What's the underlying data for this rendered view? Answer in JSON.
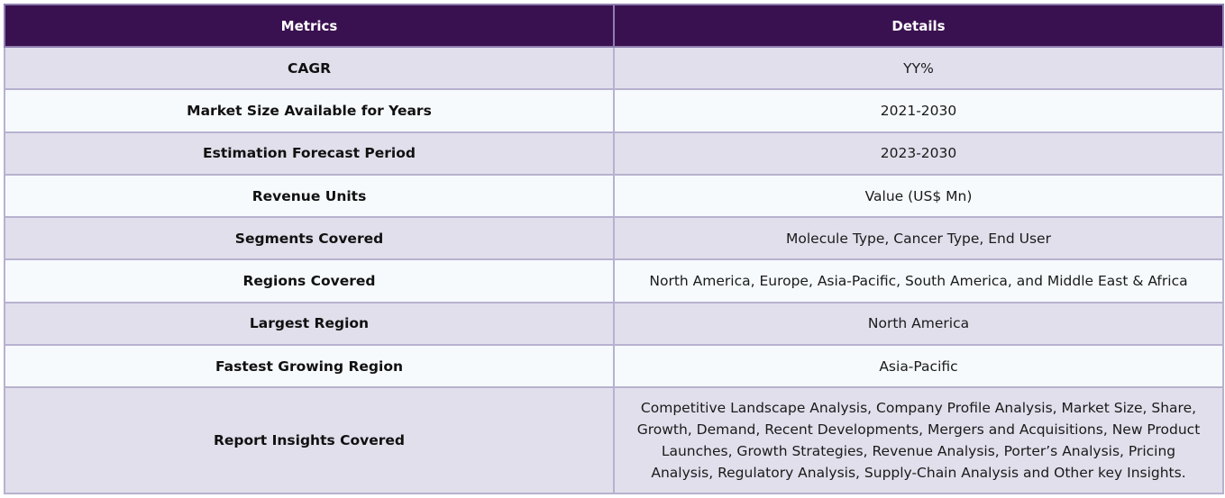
{
  "table": {
    "headers": {
      "metrics": "Metrics",
      "details": "Details"
    },
    "rows": [
      {
        "metric": "CAGR",
        "detail": "YY%"
      },
      {
        "metric": "Market Size Available for Years",
        "detail": "2021-2030"
      },
      {
        "metric": "Estimation Forecast Period",
        "detail": "2023-2030"
      },
      {
        "metric": "Revenue Units",
        "detail": "Value (US$ Mn)"
      },
      {
        "metric": "Segments Covered",
        "detail": "Molecule Type, Cancer Type, End User"
      },
      {
        "metric": "Regions Covered",
        "detail": "North America, Europe, Asia-Pacific, South America, and Middle East & Africa"
      },
      {
        "metric": "Largest Region",
        "detail": "North America"
      },
      {
        "metric": "Fastest Growing Region",
        "detail": "Asia-Pacific"
      },
      {
        "metric": "Report Insights Covered",
        "detail": "Competitive Landscape Analysis, Company Profile Analysis, Market Size, Share, Growth, Demand, Recent Developments, Mergers and Acquisitions, New Product Launches, Growth Strategies, Revenue Analysis, Porter’s Analysis, Pricing Analysis, Regulatory Analysis, Supply-Chain Analysis and Other key Insights."
      }
    ]
  },
  "colors": {
    "header_bg": "#3a1150",
    "row_alt_1": "#e2dfec",
    "row_alt_2": "#f6fafd",
    "border": "#b7b1cf"
  }
}
